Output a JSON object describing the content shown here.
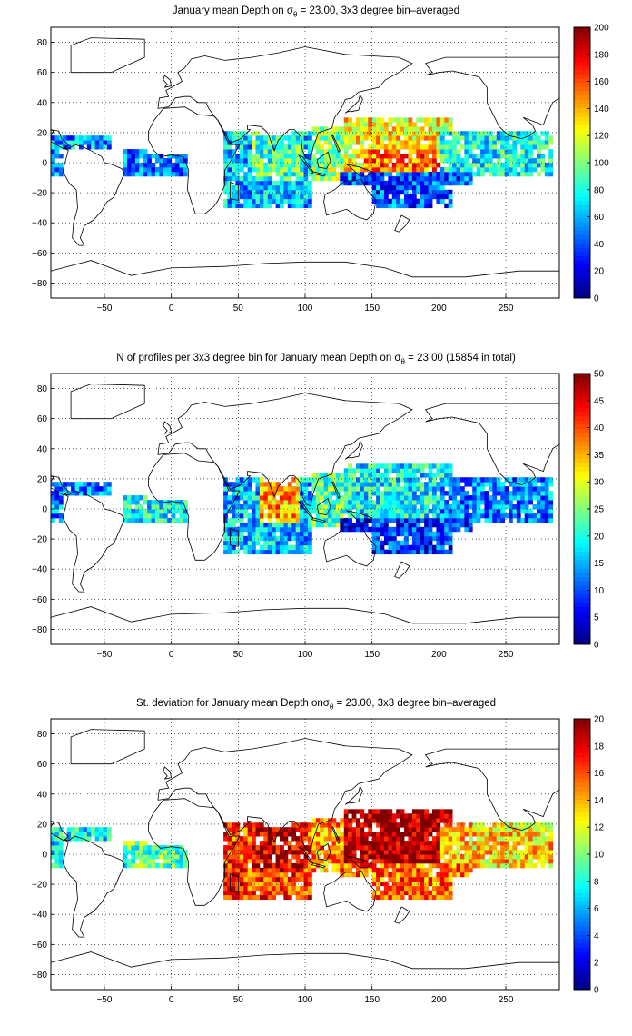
{
  "figure": {
    "panels": [
      {
        "title_prefix": "January mean Depth on σ",
        "title_sub": "θ",
        "title_suffix": " = 23.00, 3x3 degree bin–averaged"
      },
      {
        "title_prefix": "N of profiles per 3x3 degree bin for January mean Depth on σ",
        "title_sub": "θ",
        "title_suffix": " = 23.00 (15854 in total)"
      },
      {
        "title_prefix": "St. deviation for January mean Depth onσ",
        "title_sub": "θ",
        "title_suffix": " = 23.00, 3x3 degree bin–averaged"
      }
    ]
  },
  "chart_data": [
    {
      "type": "heatmap",
      "title": "January mean Depth on σθ = 23.00, 3x3 degree bin–averaged",
      "xlim": [
        -90,
        290
      ],
      "ylim": [
        -90,
        90
      ],
      "xticks": [
        -50,
        0,
        50,
        100,
        150,
        200,
        250
      ],
      "yticks": [
        80,
        60,
        40,
        20,
        0,
        -20,
        -40,
        -60,
        -80
      ],
      "grid": "dotted",
      "colormap": "jet",
      "colorbar": {
        "min": 0,
        "max": 200,
        "ticks": [
          200,
          180,
          160,
          140,
          120,
          100,
          80,
          60,
          40,
          20,
          0
        ]
      },
      "regions": [
        {
          "name": "",
          "lon": [
            -90,
            -45
          ],
          "lat": [
            -8,
            18
          ],
          "value": 55
        },
        {
          "name": "",
          "lon": [
            -45,
            12
          ],
          "lat": [
            -9,
            9
          ],
          "value": 45
        },
        {
          "name": "",
          "lon": [
            40,
            105
          ],
          "lat": [
            -30,
            20
          ],
          "value": 60
        },
        {
          "name": "",
          "lon": [
            60,
            100
          ],
          "lat": [
            -12,
            22
          ],
          "value": 85
        },
        {
          "name": "",
          "lon": [
            105,
            135
          ],
          "lat": [
            -12,
            25
          ],
          "value": 100
        },
        {
          "name": "",
          "lon": [
            130,
            210
          ],
          "lat": [
            -15,
            30
          ],
          "value": 125
        },
        {
          "name": "",
          "lon": [
            145,
            215
          ],
          "lat": [
            -5,
            10
          ],
          "value": 150
        },
        {
          "name": "",
          "lon": [
            200,
            285
          ],
          "lat": [
            -10,
            20
          ],
          "value": 75
        },
        {
          "name": "",
          "lon": [
            125,
            225
          ],
          "lat": [
            -30,
            -5
          ],
          "value": 40
        }
      ]
    },
    {
      "type": "heatmap",
      "title": "N of profiles per 3x3 degree bin for January mean Depth on σθ = 23.00 (15854 in total)",
      "xlim": [
        -90,
        290
      ],
      "ylim": [
        -90,
        90
      ],
      "xticks": [
        -50,
        0,
        50,
        100,
        150,
        200,
        250
      ],
      "yticks": [
        80,
        60,
        40,
        20,
        0,
        -20,
        -40,
        -60,
        -80
      ],
      "grid": "dotted",
      "colormap": "jet",
      "colorbar": {
        "min": 0,
        "max": 50,
        "ticks": [
          50,
          45,
          40,
          35,
          30,
          25,
          20,
          15,
          10,
          5,
          0
        ]
      },
      "regions": [
        {
          "name": "",
          "lon": [
            -90,
            -45
          ],
          "lat": [
            -8,
            18
          ],
          "value": 12
        },
        {
          "name": "",
          "lon": [
            -45,
            12
          ],
          "lat": [
            -9,
            9
          ],
          "value": 18
        },
        {
          "name": "",
          "lon": [
            40,
            105
          ],
          "lat": [
            -30,
            20
          ],
          "value": 15
        },
        {
          "name": "",
          "lon": [
            65,
            95
          ],
          "lat": [
            -10,
            22
          ],
          "value": 35
        },
        {
          "name": "",
          "lon": [
            105,
            135
          ],
          "lat": [
            -12,
            25
          ],
          "value": 22
        },
        {
          "name": "",
          "lon": [
            130,
            210
          ],
          "lat": [
            -15,
            30
          ],
          "value": 18
        },
        {
          "name": "",
          "lon": [
            200,
            285
          ],
          "lat": [
            -10,
            20
          ],
          "value": 12
        },
        {
          "name": "",
          "lon": [
            125,
            225
          ],
          "lat": [
            -30,
            -5
          ],
          "value": 8
        }
      ]
    },
    {
      "type": "heatmap",
      "title": "St. deviation for January mean Depth onσθ = 23.00, 3x3 degree bin–averaged",
      "xlim": [
        -90,
        290
      ],
      "ylim": [
        -90,
        90
      ],
      "xticks": [
        -50,
        0,
        50,
        100,
        150,
        200,
        250
      ],
      "yticks": [
        80,
        60,
        40,
        20,
        0,
        -20,
        -40,
        -60,
        -80
      ],
      "grid": "dotted",
      "colormap": "jet",
      "colorbar": {
        "min": 0,
        "max": 20,
        "ticks": [
          20,
          18,
          16,
          14,
          12,
          10,
          8,
          6,
          4,
          2,
          0
        ]
      },
      "regions": [
        {
          "name": "",
          "lon": [
            -90,
            -45
          ],
          "lat": [
            -8,
            18
          ],
          "value": 7
        },
        {
          "name": "",
          "lon": [
            -45,
            12
          ],
          "lat": [
            -9,
            9
          ],
          "value": 9
        },
        {
          "name": "",
          "lon": [
            40,
            105
          ],
          "lat": [
            -30,
            20
          ],
          "value": 16
        },
        {
          "name": "",
          "lon": [
            60,
            100
          ],
          "lat": [
            -12,
            22
          ],
          "value": 18
        },
        {
          "name": "",
          "lon": [
            105,
            135
          ],
          "lat": [
            -12,
            25
          ],
          "value": 14
        },
        {
          "name": "",
          "lon": [
            130,
            210
          ],
          "lat": [
            -15,
            30
          ],
          "value": 19
        },
        {
          "name": "",
          "lon": [
            200,
            285
          ],
          "lat": [
            -10,
            20
          ],
          "value": 13
        },
        {
          "name": "",
          "lon": [
            125,
            225
          ],
          "lat": [
            -30,
            -5
          ],
          "value": 15
        }
      ]
    }
  ]
}
